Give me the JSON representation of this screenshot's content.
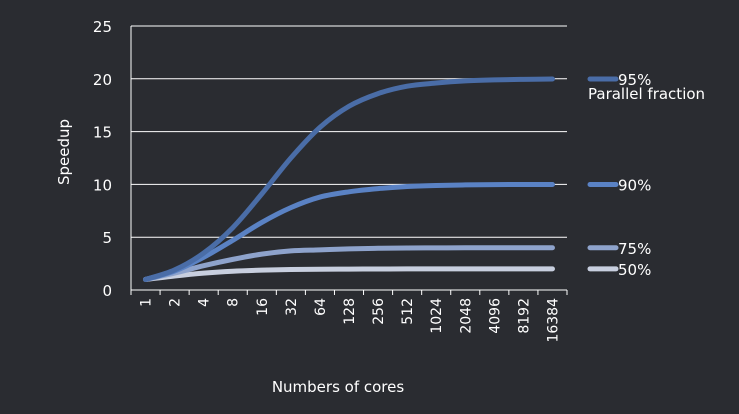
{
  "chart_data": {
    "type": "line",
    "title": "",
    "xlabel": "Numbers of cores",
    "ylabel": "Speedup",
    "categories": [
      "1",
      "2",
      "4",
      "8",
      "16",
      "32",
      "64",
      "128",
      "256",
      "512",
      "1024",
      "2048",
      "4096",
      "8192",
      "16384"
    ],
    "ylim": [
      0,
      25
    ],
    "yticks": [
      "0",
      "5",
      "10",
      "15",
      "20",
      "25"
    ],
    "grid": true,
    "legend_title": "Parallel fraction",
    "legend_position": "right",
    "series": [
      {
        "name": "95%",
        "color": "#4a6da7",
        "values": [
          1.0,
          1.9,
          3.5,
          5.9,
          9.1,
          12.5,
          15.4,
          17.4,
          18.6,
          19.3,
          19.6,
          19.8,
          19.9,
          19.95,
          19.98
        ]
      },
      {
        "name": "90%",
        "color": "#5a82c4",
        "values": [
          1.0,
          1.8,
          3.1,
          4.7,
          6.4,
          7.8,
          8.8,
          9.3,
          9.6,
          9.8,
          9.9,
          9.95,
          9.98,
          9.99,
          9.99
        ]
      },
      {
        "name": "75%",
        "color": "#8ea3cc",
        "values": [
          1.0,
          1.6,
          2.3,
          2.9,
          3.4,
          3.7,
          3.8,
          3.9,
          3.95,
          3.98,
          3.99,
          4.0,
          4.0,
          4.0,
          4.0
        ]
      },
      {
        "name": "50%",
        "color": "#c8cfdf",
        "values": [
          1.0,
          1.33,
          1.6,
          1.78,
          1.88,
          1.94,
          1.97,
          1.98,
          1.99,
          2.0,
          2.0,
          2.0,
          2.0,
          2.0,
          2.0
        ]
      }
    ]
  }
}
